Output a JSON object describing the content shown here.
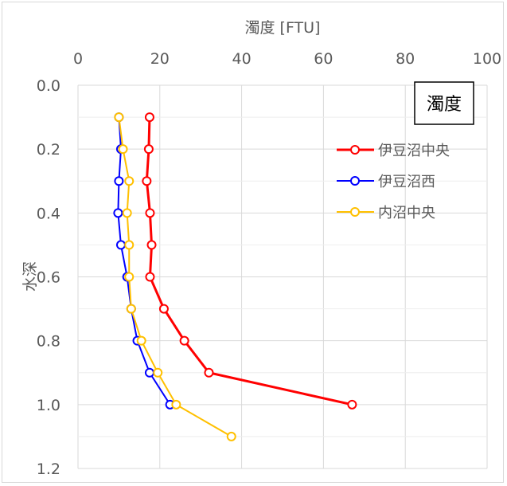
{
  "chart_data": {
    "type": "line",
    "title": "",
    "annotation": "濁度",
    "xlabel": "濁度  [FTU]",
    "ylabel": "水深",
    "x_axis_position": "top",
    "y_axis_inverted": true,
    "xlim": [
      0,
      100
    ],
    "ylim": [
      0,
      1.2
    ],
    "x_ticks": [
      "0",
      "20",
      "40",
      "60",
      "80",
      "100"
    ],
    "y_ticks": [
      "0.0",
      "0.2",
      "0.4",
      "0.6",
      "0.8",
      "1.0",
      "1.2"
    ],
    "grid": true,
    "legend_position": "right",
    "series": [
      {
        "name": "伊豆沼中央",
        "color": "#ff0000",
        "points": [
          [
            17.5,
            0.1
          ],
          [
            17.3,
            0.2
          ],
          [
            16.8,
            0.3
          ],
          [
            17.6,
            0.4
          ],
          [
            18.0,
            0.5
          ],
          [
            17.6,
            0.6
          ],
          [
            21.0,
            0.7
          ],
          [
            26.0,
            0.8
          ],
          [
            32.0,
            0.9
          ],
          [
            67.0,
            1.0
          ]
        ]
      },
      {
        "name": "伊豆沼西",
        "color": "#0000ff",
        "points": [
          [
            10.0,
            0.1
          ],
          [
            10.5,
            0.2
          ],
          [
            10.0,
            0.3
          ],
          [
            9.8,
            0.4
          ],
          [
            10.5,
            0.5
          ],
          [
            12.0,
            0.6
          ],
          [
            13.0,
            0.7
          ],
          [
            14.5,
            0.8
          ],
          [
            17.5,
            0.9
          ],
          [
            22.5,
            1.0
          ]
        ]
      },
      {
        "name": "内沼中央",
        "color": "#ffc000",
        "points": [
          [
            10.0,
            0.1
          ],
          [
            11.0,
            0.2
          ],
          [
            12.5,
            0.3
          ],
          [
            12.0,
            0.4
          ],
          [
            12.5,
            0.5
          ],
          [
            12.5,
            0.6
          ],
          [
            13.0,
            0.7
          ],
          [
            15.5,
            0.8
          ],
          [
            19.5,
            0.9
          ],
          [
            24.0,
            1.0
          ],
          [
            37.5,
            1.1
          ]
        ]
      }
    ]
  }
}
